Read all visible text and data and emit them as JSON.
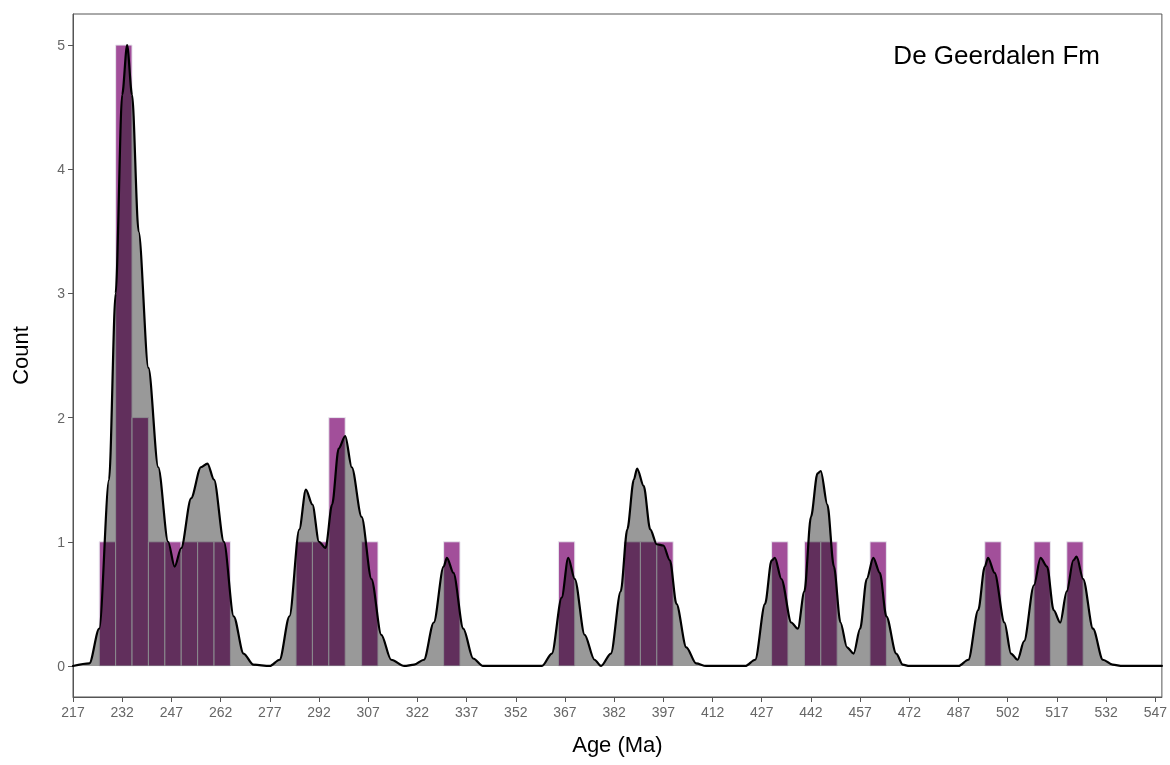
{
  "chart_data": {
    "type": "histogram",
    "xlabel": "Age (Ma)",
    "ylabel": "Count",
    "annotations": [
      "De Geerdalen Fm"
    ],
    "bins": [
      225,
      230,
      235,
      240,
      245,
      250,
      255,
      260,
      265,
      270,
      275,
      280,
      285,
      290,
      295,
      300,
      305,
      310,
      315,
      320,
      325,
      330,
      335,
      340,
      345,
      350,
      355,
      360,
      365,
      370,
      375,
      380,
      385,
      390,
      395,
      400,
      405,
      410,
      415,
      420,
      425,
      430,
      435,
      440,
      445,
      450,
      455,
      460,
      465,
      470,
      475,
      480,
      485,
      490,
      495,
      500,
      505,
      510,
      515,
      520,
      525
    ],
    "series": [
      {
        "type": "histogram",
        "color": "#a24f9a",
        "values": [
          1,
          5,
          2,
          1,
          1,
          1,
          1,
          1,
          0,
          0,
          0,
          0,
          1,
          1,
          2,
          0,
          1,
          0,
          0,
          0,
          0,
          1,
          0,
          0,
          0,
          0,
          0,
          0,
          1,
          0,
          0,
          0,
          1,
          1,
          1,
          0,
          0,
          0,
          0,
          0,
          0,
          1,
          0,
          1,
          1,
          0,
          0,
          1,
          0,
          0,
          0,
          0,
          0,
          0,
          1,
          0,
          0,
          1,
          0,
          1
        ]
      },
      {
        "type": "area",
        "color": "#000000",
        "x": [
          217,
          222,
          225,
          228,
          230,
          232,
          233.5,
          235,
          237,
          240,
          243,
          246,
          248,
          250,
          253,
          256,
          258,
          260,
          263,
          266,
          269,
          272,
          277,
          280,
          283,
          286,
          288,
          290,
          292,
          294,
          296,
          298,
          300,
          302,
          305,
          308,
          311,
          314,
          318,
          321,
          324,
          327,
          330,
          331,
          333,
          336,
          339,
          342,
          360,
          363,
          366,
          368,
          370,
          373,
          376,
          378,
          381,
          384,
          386,
          388,
          389,
          391,
          393,
          395,
          397,
          399,
          401,
          404,
          407,
          410,
          422,
          425,
          428,
          430,
          431,
          433,
          436,
          438,
          440,
          442,
          444,
          445,
          447,
          449,
          451,
          453,
          455,
          457,
          459,
          461,
          463,
          465,
          468,
          470,
          472,
          487,
          490,
          493,
          495,
          496,
          498,
          501,
          503,
          505,
          507,
          510,
          512,
          514,
          516,
          518,
          520,
          522,
          523,
          525,
          528,
          531,
          534,
          537,
          549
        ],
        "values": [
          0,
          0.02,
          0.3,
          1.5,
          3.0,
          4.6,
          5.0,
          4.6,
          3.5,
          2.4,
          1.6,
          1.0,
          0.8,
          0.95,
          1.35,
          1.6,
          1.63,
          1.5,
          1.0,
          0.4,
          0.1,
          0.01,
          0,
          0.05,
          0.4,
          1.1,
          1.42,
          1.3,
          1.0,
          0.95,
          1.3,
          1.75,
          1.85,
          1.6,
          1.2,
          0.7,
          0.25,
          0.05,
          0,
          0.01,
          0.05,
          0.35,
          0.8,
          0.87,
          0.75,
          0.3,
          0.06,
          0,
          0,
          0.1,
          0.55,
          0.87,
          0.7,
          0.25,
          0.05,
          0,
          0.1,
          0.6,
          1.1,
          1.5,
          1.59,
          1.45,
          1.1,
          0.98,
          0.97,
          0.85,
          0.5,
          0.15,
          0.02,
          0,
          0,
          0.05,
          0.5,
          0.85,
          0.87,
          0.7,
          0.35,
          0.3,
          0.6,
          1.2,
          1.55,
          1.57,
          1.3,
          0.8,
          0.35,
          0.15,
          0.1,
          0.3,
          0.7,
          0.87,
          0.75,
          0.4,
          0.1,
          0.01,
          0,
          0,
          0.05,
          0.45,
          0.8,
          0.87,
          0.75,
          0.35,
          0.1,
          0.05,
          0.2,
          0.65,
          0.87,
          0.8,
          0.45,
          0.35,
          0.6,
          0.85,
          0.88,
          0.7,
          0.3,
          0.05,
          0.01,
          0,
          0
        ]
      }
    ],
    "xlim": [
      217,
      549
    ],
    "xticks": [
      217,
      232,
      247,
      262,
      277,
      292,
      307,
      322,
      337,
      352,
      367,
      382,
      397,
      412,
      427,
      442,
      457,
      472,
      487,
      502,
      517,
      532,
      547
    ],
    "ylim": [
      -0.25,
      5.25
    ],
    "yticks": [
      0,
      1,
      2,
      3,
      4,
      5
    ],
    "grid": false
  }
}
